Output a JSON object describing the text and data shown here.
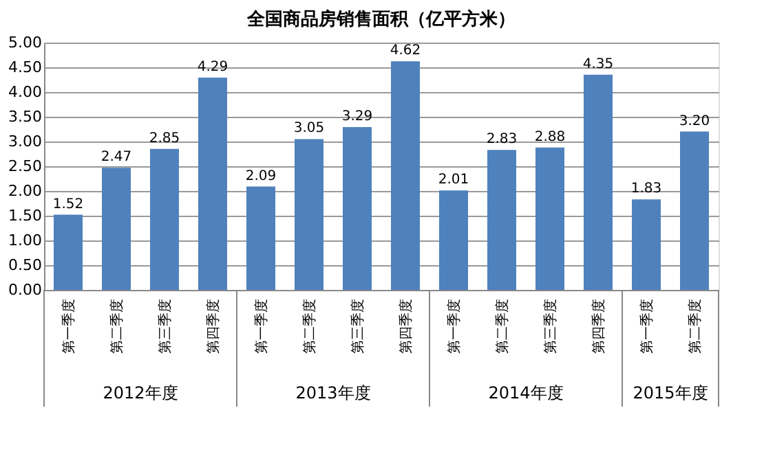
{
  "chart_data": {
    "type": "bar",
    "title": "全国商品房销售面积（亿平方米）",
    "categories": [
      "第一季度",
      "第二季度",
      "第三季度",
      "第四季度",
      "第一季度",
      "第二季度",
      "第三季度",
      "第四季度",
      "第一季度",
      "第二季度",
      "第三季度",
      "第四季度",
      "第一季度",
      "第二季度"
    ],
    "values": [
      1.52,
      2.47,
      2.85,
      4.29,
      2.09,
      3.05,
      3.29,
      4.62,
      2.01,
      2.83,
      2.88,
      4.35,
      1.83,
      3.2
    ],
    "value_labels": [
      "1.52",
      "2.47",
      "2.85",
      "4.29",
      "2.09",
      "3.05",
      "3.29",
      "4.62",
      "2.01",
      "2.83",
      "2.88",
      "4.35",
      "1.83",
      "3.20"
    ],
    "color": "#4f81bd",
    "ylim": [
      0,
      5
    ],
    "yticks": [
      {
        "value": 0,
        "label": "0.00"
      },
      {
        "value": 0.5,
        "label": "0.50"
      },
      {
        "value": 1,
        "label": "1.00"
      },
      {
        "value": 1.5,
        "label": "1.50"
      },
      {
        "value": 2,
        "label": "2.00"
      },
      {
        "value": 2.5,
        "label": "2.50"
      },
      {
        "value": 3,
        "label": "3.00"
      },
      {
        "value": 3.5,
        "label": "3.50"
      },
      {
        "value": 4,
        "label": "4.00"
      },
      {
        "value": 4.5,
        "label": "4.50"
      },
      {
        "value": 5,
        "label": "5.00"
      }
    ],
    "grid": "y",
    "annotations": [
      "2012年度",
      "2013年度",
      "2014年度",
      "2015年度"
    ]
  }
}
